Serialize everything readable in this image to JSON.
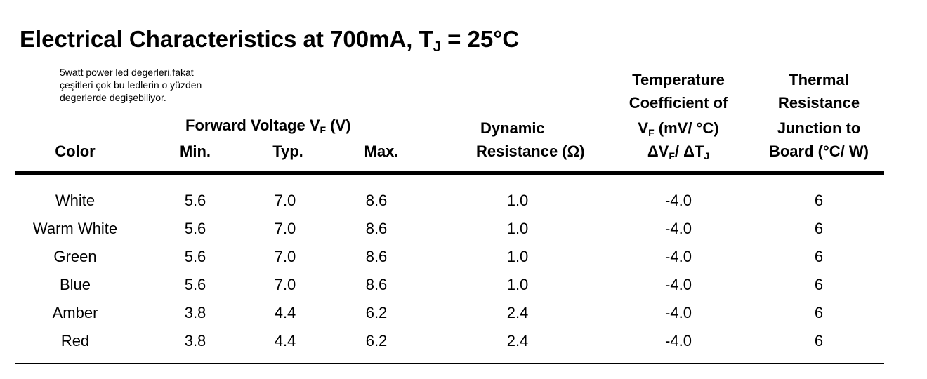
{
  "title": {
    "main": "Electrical Characteristics at 700mA, T",
    "subscript": "J",
    "rest": " = 25°C"
  },
  "note": [
    "5watt power led degerleri.fakat",
    "çeşitleri çok bu ledlerin o yüzden",
    "degerlerde degişebiliyor."
  ],
  "headers": {
    "color": "Color",
    "forward_voltage": {
      "prefix": "Forward Voltage V",
      "subscript": "F",
      "suffix": " (V)"
    },
    "min": "Min.",
    "typ": "Typ.",
    "max": "Max.",
    "dynamic_line1": "Dynamic",
    "dynamic_line2": "Resistance (Ω)",
    "temp_line1": "Temperature",
    "temp_line2": "Coefficient of",
    "temp_line3": {
      "prefix": "V",
      "subscript": "F",
      "suffix": " (mV/ °C)"
    },
    "temp_line4": {
      "a": "ΔV",
      "a_sub": "F",
      "b": "/ ΔT",
      "b_sub": "J"
    },
    "thermal_line1": "Thermal",
    "thermal_line2": "Resistance",
    "thermal_line3": "Junction to",
    "thermal_line4": "Board (°C/ W)"
  },
  "rows": [
    {
      "color": "White",
      "min": "5.6",
      "typ": "7.0",
      "max": "8.6",
      "dynamic": "1.0",
      "temp": "-4.0",
      "thermal": "6"
    },
    {
      "color": "Warm White",
      "min": "5.6",
      "typ": "7.0",
      "max": "8.6",
      "dynamic": "1.0",
      "temp": "-4.0",
      "thermal": "6"
    },
    {
      "color": "Green",
      "min": "5.6",
      "typ": "7.0",
      "max": "8.6",
      "dynamic": "1.0",
      "temp": "-4.0",
      "thermal": "6"
    },
    {
      "color": "Blue",
      "min": "5.6",
      "typ": "7.0",
      "max": "8.6",
      "dynamic": "1.0",
      "temp": "-4.0",
      "thermal": "6"
    },
    {
      "color": "Amber",
      "min": "3.8",
      "typ": "4.4",
      "max": "6.2",
      "dynamic": "2.4",
      "temp": "-4.0",
      "thermal": "6"
    },
    {
      "color": "Red",
      "min": "3.8",
      "typ": "4.4",
      "max": "6.2",
      "dynamic": "2.4",
      "temp": "-4.0",
      "thermal": "6"
    }
  ]
}
